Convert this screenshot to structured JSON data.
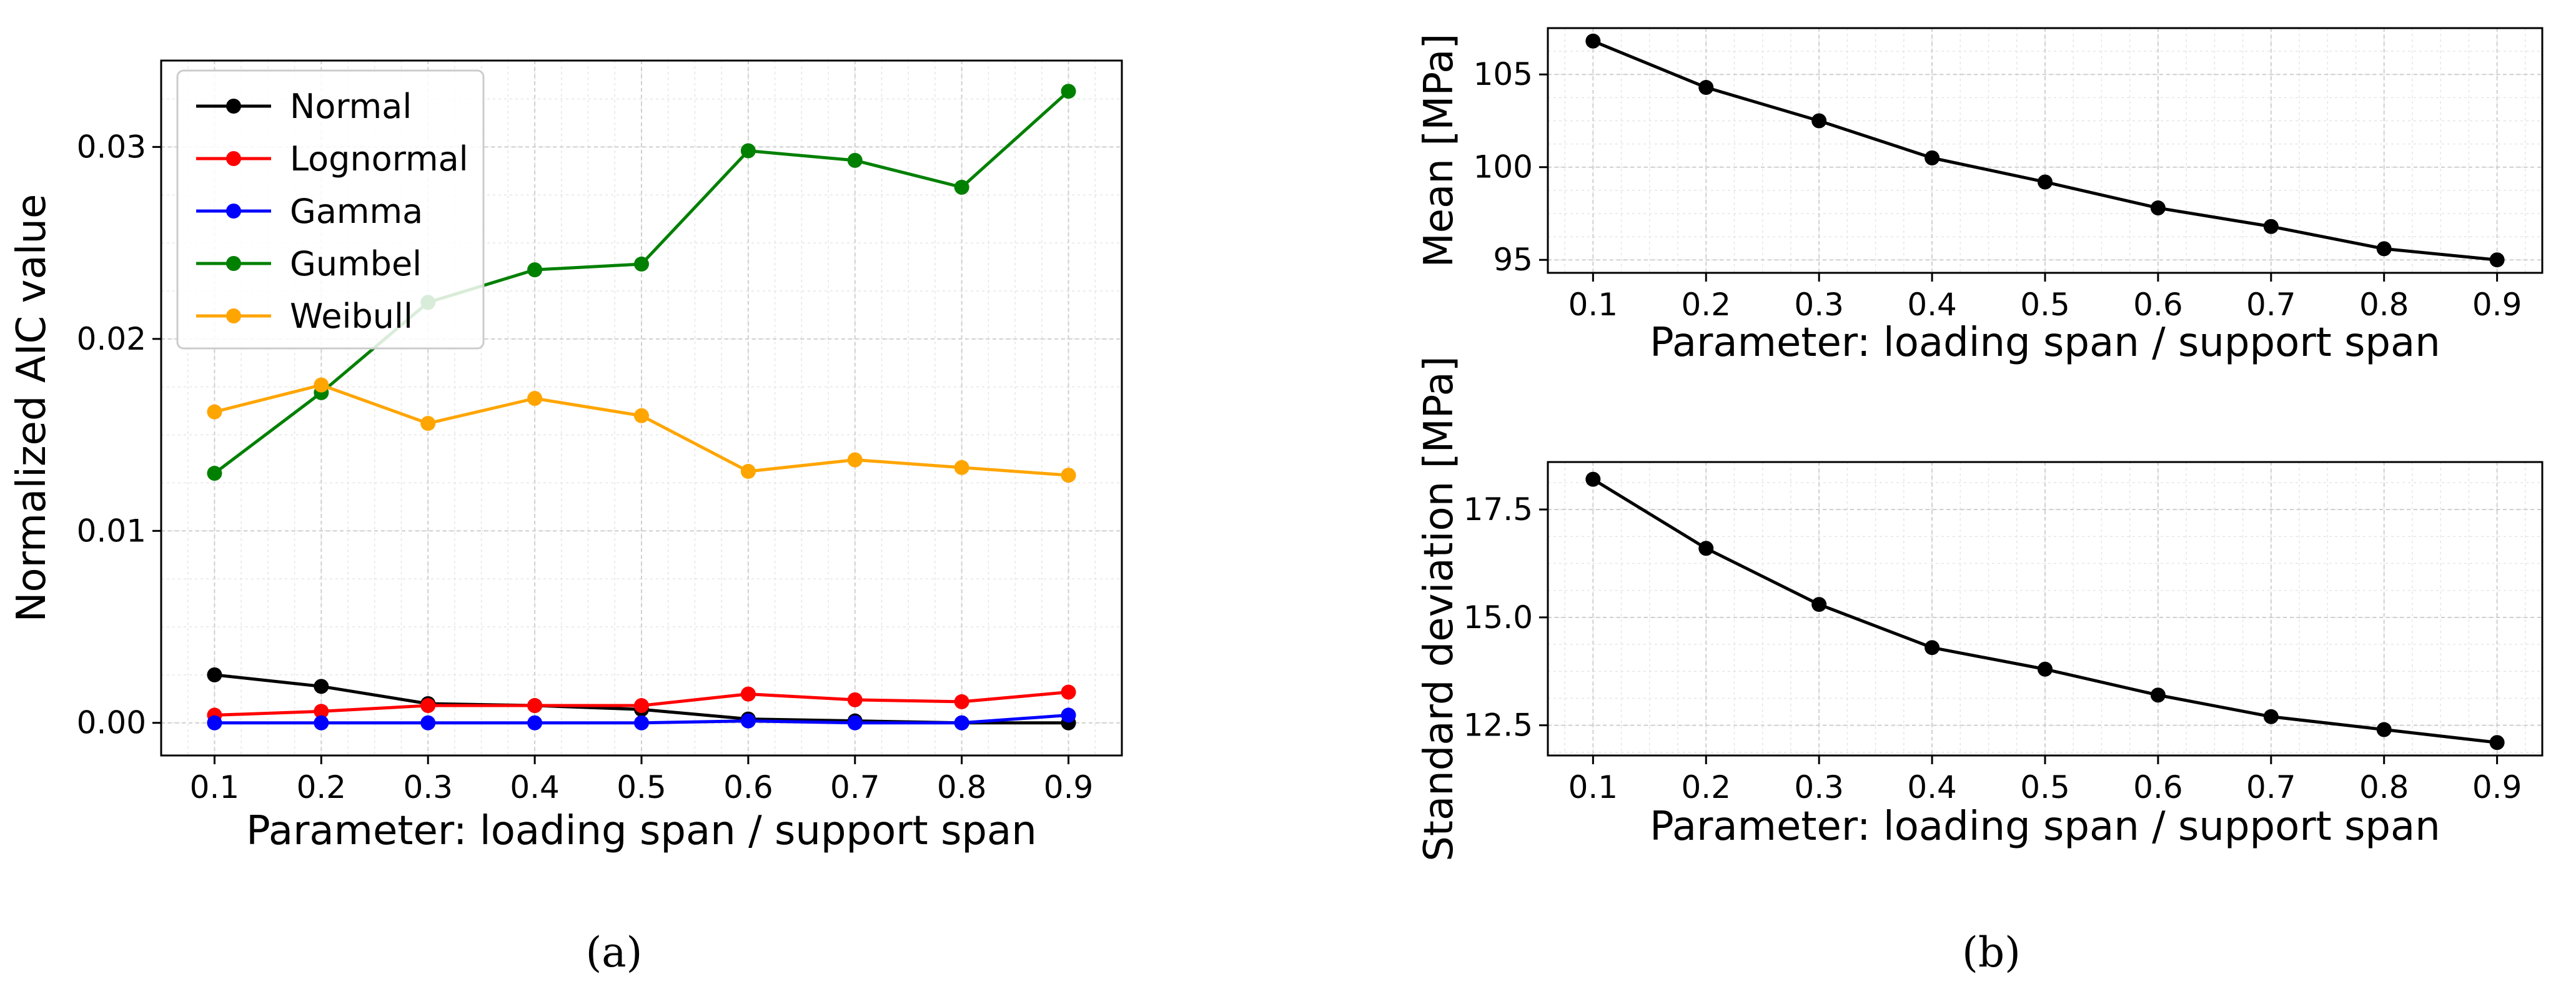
{
  "chart_data": [
    {
      "id": "a",
      "type": "line",
      "caption": "(a)",
      "xlabel": "Parameter: loading span / support span",
      "ylabel": "Normalized AIC value",
      "x": [
        0.1,
        0.2,
        0.3,
        0.4,
        0.5,
        0.6,
        0.7,
        0.8,
        0.9
      ],
      "xticks": [
        "0.1",
        "0.2",
        "0.3",
        "0.4",
        "0.5",
        "0.6",
        "0.7",
        "0.8",
        "0.9"
      ],
      "xlim": [
        0.05,
        0.95
      ],
      "ylim": [
        -0.0017,
        0.0345
      ],
      "yticks": [
        0.0,
        0.01,
        0.02,
        0.03
      ],
      "ytick_labels": [
        "0.00",
        "0.01",
        "0.02",
        "0.03"
      ],
      "grid": true,
      "legend_position": "upper-left",
      "series": [
        {
          "name": "Normal",
          "color": "#000000",
          "values": [
            0.0025,
            0.0019,
            0.001,
            0.0009,
            0.0007,
            0.0002,
            0.0001,
            0.0,
            0.0
          ]
        },
        {
          "name": "Lognormal",
          "color": "#ff0000",
          "values": [
            0.0004,
            0.0006,
            0.0009,
            0.0009,
            0.0009,
            0.0015,
            0.0012,
            0.0011,
            0.0016
          ]
        },
        {
          "name": "Gamma",
          "color": "#0000ff",
          "values": [
            0.0,
            0.0,
            0.0,
            0.0,
            0.0,
            0.0001,
            0.0,
            0.0,
            0.0004
          ]
        },
        {
          "name": "Gumbel",
          "color": "#008000",
          "values": [
            0.013,
            0.0172,
            0.0219,
            0.0236,
            0.0239,
            0.0298,
            0.0293,
            0.0279,
            0.0329
          ]
        },
        {
          "name": "Weibull",
          "color": "#ffa500",
          "values": [
            0.0162,
            0.0176,
            0.0156,
            0.0169,
            0.016,
            0.0131,
            0.0137,
            0.0133,
            0.0129
          ]
        }
      ]
    },
    {
      "id": "b_top",
      "type": "line",
      "xlabel": "Parameter: loading span / support span",
      "ylabel": "Mean [MPa]",
      "x": [
        0.1,
        0.2,
        0.3,
        0.4,
        0.5,
        0.6,
        0.7,
        0.8,
        0.9
      ],
      "xticks": [
        "0.1",
        "0.2",
        "0.3",
        "0.4",
        "0.5",
        "0.6",
        "0.7",
        "0.8",
        "0.9"
      ],
      "xlim": [
        0.06,
        0.94
      ],
      "ylim": [
        94.3,
        107.5
      ],
      "yticks": [
        95,
        100,
        105
      ],
      "ytick_labels": [
        "95",
        "100",
        "105"
      ],
      "grid": true,
      "series": [
        {
          "name": "Mean",
          "color": "#000000",
          "values": [
            106.8,
            104.3,
            102.5,
            100.5,
            99.2,
            97.8,
            96.8,
            95.6,
            95.0
          ]
        }
      ]
    },
    {
      "id": "b_bottom",
      "type": "line",
      "caption": "(b)",
      "xlabel": "Parameter: loading span / support span",
      "ylabel": "Standard deviation [MPa]",
      "x": [
        0.1,
        0.2,
        0.3,
        0.4,
        0.5,
        0.6,
        0.7,
        0.8,
        0.9
      ],
      "xticks": [
        "0.1",
        "0.2",
        "0.3",
        "0.4",
        "0.5",
        "0.6",
        "0.7",
        "0.8",
        "0.9"
      ],
      "xlim": [
        0.06,
        0.94
      ],
      "ylim": [
        11.8,
        18.6
      ],
      "yticks": [
        12.5,
        15.0,
        17.5
      ],
      "ytick_labels": [
        "12.5",
        "15.0",
        "17.5"
      ],
      "grid": true,
      "series": [
        {
          "name": "Standard deviation",
          "color": "#000000",
          "values": [
            18.2,
            16.6,
            15.3,
            14.3,
            13.8,
            13.2,
            12.7,
            12.4,
            12.1
          ]
        }
      ]
    }
  ]
}
